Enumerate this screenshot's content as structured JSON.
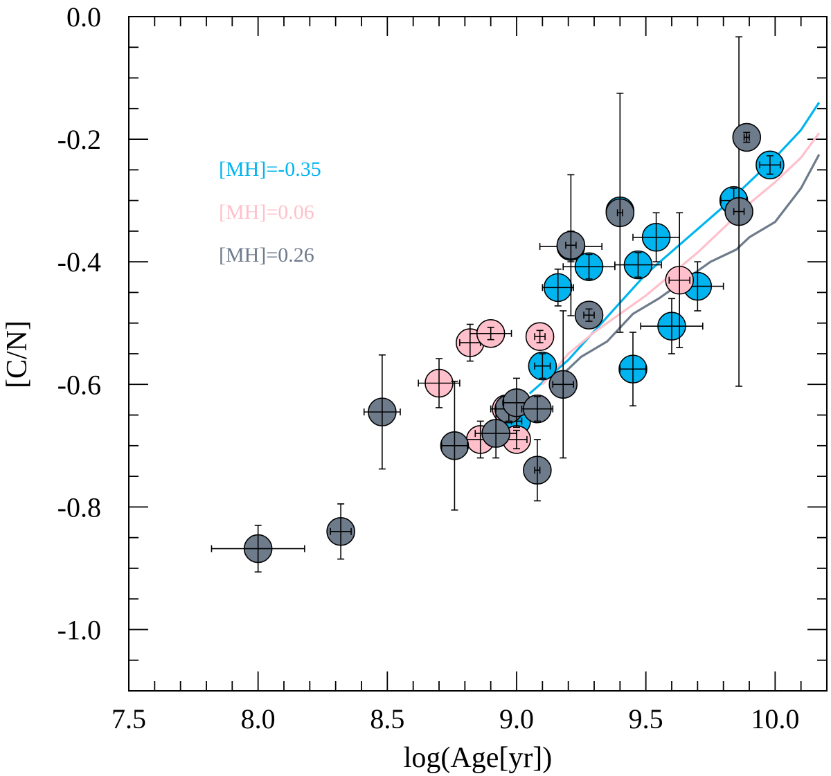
{
  "chart_data": {
    "type": "scatter",
    "xlabel": "log(Age[yr])",
    "ylabel": "[C/N]",
    "xlim": [
      7.5,
      10.2
    ],
    "ylim": [
      -1.1,
      0.0
    ],
    "x_ticks": [
      "7.5",
      "8.0",
      "8.5",
      "9.0",
      "9.5",
      "10.0"
    ],
    "y_ticks": [
      "0.0",
      "-0.2",
      "-0.4",
      "-0.6",
      "-0.8",
      "-1.0"
    ],
    "legend": [
      {
        "label": "[MH]=-0.35",
        "color": "#00b4f0"
      },
      {
        "label": "[MH]=0.06",
        "color": "#ffc0cb"
      },
      {
        "label": "[MH]=0.26",
        "color": "#6e7b8b"
      }
    ],
    "lines": [
      {
        "color": "#00b4f0",
        "x": [
          9.05,
          9.2,
          9.35,
          9.5,
          9.65,
          9.8,
          9.9,
          10.0,
          10.1,
          10.17
        ],
        "y": [
          -0.615,
          -0.56,
          -0.49,
          -0.42,
          -0.365,
          -0.31,
          -0.27,
          -0.23,
          -0.185,
          -0.14
        ]
      },
      {
        "color": "#ffc0cb",
        "x": [
          9.1,
          9.2,
          9.3,
          9.4,
          9.5,
          9.6,
          9.7,
          9.8,
          9.9,
          10.0,
          10.1,
          10.17
        ],
        "y": [
          -0.6,
          -0.55,
          -0.515,
          -0.485,
          -0.455,
          -0.42,
          -0.385,
          -0.345,
          -0.305,
          -0.27,
          -0.23,
          -0.19
        ]
      },
      {
        "color": "#6e7b8b",
        "x": [
          9.15,
          9.25,
          9.35,
          9.45,
          9.55,
          9.65,
          9.75,
          9.85,
          9.9,
          10.0,
          10.1,
          10.17
        ],
        "y": [
          -0.595,
          -0.555,
          -0.53,
          -0.485,
          -0.46,
          -0.43,
          -0.4,
          -0.38,
          -0.36,
          -0.335,
          -0.28,
          -0.225
        ]
      }
    ],
    "series": [
      {
        "color": "#00b4f0",
        "points": [
          {
            "x": 9.0,
            "y": -0.66,
            "xerr": 0.02,
            "yerr": 0.02
          },
          {
            "x": 9.1,
            "y": -0.57,
            "xerr": 0.03,
            "yerr": 0.02
          },
          {
            "x": 9.16,
            "y": -0.442,
            "xerr": 0.06,
            "yerr": 0.03
          },
          {
            "x": 9.21,
            "y": -0.375,
            "xerr": 0.12,
            "yerr": 0.025
          },
          {
            "x": 9.28,
            "y": -0.408,
            "xerr": 0.1,
            "yerr": 0.02
          },
          {
            "x": 9.4,
            "y": -0.317,
            "xerr": 0.04,
            "yerr": 0.01
          },
          {
            "x": 9.45,
            "y": -0.575,
            "xerr": 0.05,
            "yerr": 0.06
          },
          {
            "x": 9.47,
            "y": -0.405,
            "xerr": 0.09,
            "yerr": 0.02
          },
          {
            "x": 9.54,
            "y": -0.36,
            "xerr": 0.09,
            "yerr": 0.04
          },
          {
            "x": 9.6,
            "y": -0.505,
            "xerr": 0.12,
            "yerr": 0.045
          },
          {
            "x": 9.7,
            "y": -0.44,
            "xerr": 0.1,
            "yerr": 0.04
          },
          {
            "x": 9.84,
            "y": -0.3,
            "xerr": 0.05,
            "yerr": 0.02
          },
          {
            "x": 9.98,
            "y": -0.242,
            "xerr": 0.04,
            "yerr": 0.015
          }
        ]
      },
      {
        "color": "#ffc0cb",
        "points": [
          {
            "x": 8.7,
            "y": -0.598,
            "xerr": 0.08,
            "yerr": 0.04
          },
          {
            "x": 8.82,
            "y": -0.532,
            "xerr": 0.04,
            "yerr": 0.03
          },
          {
            "x": 8.9,
            "y": -0.517,
            "xerr": 0.08,
            "yerr": 0.01
          },
          {
            "x": 8.86,
            "y": -0.69,
            "xerr": 0.07,
            "yerr": 0.03
          },
          {
            "x": 8.96,
            "y": -0.64,
            "xerr": 0.06,
            "yerr": 0.02
          },
          {
            "x": 9.0,
            "y": -0.69,
            "xerr": 0.04,
            "yerr": 0.015
          },
          {
            "x": 9.09,
            "y": -0.522,
            "xerr": 0.02,
            "yerr": 0.01
          },
          {
            "x": 9.63,
            "y": -0.43,
            "xerr": 0.04,
            "yerr": 0.11
          }
        ]
      },
      {
        "color": "#6e7b8b",
        "points": [
          {
            "x": 8.0,
            "y": -0.868,
            "xerr": 0.18,
            "yerr": 0.038
          },
          {
            "x": 8.32,
            "y": -0.84,
            "xerr": 0.04,
            "yerr": 0.045
          },
          {
            "x": 8.48,
            "y": -0.645,
            "xerr": 0.07,
            "yerr": 0.093
          },
          {
            "x": 8.76,
            "y": -0.7,
            "xerr": 0.05,
            "yerr": 0.105
          },
          {
            "x": 8.92,
            "y": -0.68,
            "xerr": 0.08,
            "yerr": 0.04
          },
          {
            "x": 8.97,
            "y": -0.64,
            "xerr": 0.05,
            "yerr": 0.02
          },
          {
            "x": 9.0,
            "y": -0.63,
            "xerr": 0.05,
            "yerr": 0.04
          },
          {
            "x": 9.08,
            "y": -0.64,
            "xerr": 0.06,
            "yerr": 0.02
          },
          {
            "x": 9.08,
            "y": -0.74,
            "xerr": 0.01,
            "yerr": 0.05
          },
          {
            "x": 9.18,
            "y": -0.6,
            "xerr": 0.04,
            "yerr": 0.12
          },
          {
            "x": 9.21,
            "y": -0.373,
            "xerr": 0.02,
            "yerr": 0.115
          },
          {
            "x": 9.28,
            "y": -0.487,
            "xerr": 0.02,
            "yerr": 0.01
          },
          {
            "x": 9.4,
            "y": -0.32,
            "xerr": 0.01,
            "yerr": 0.195
          },
          {
            "x": 9.86,
            "y": -0.318,
            "xerr": 0.02,
            "yerr": 0.285
          },
          {
            "x": 9.89,
            "y": -0.197,
            "xerr": 0.01,
            "yerr": 0.008
          }
        ]
      }
    ]
  }
}
